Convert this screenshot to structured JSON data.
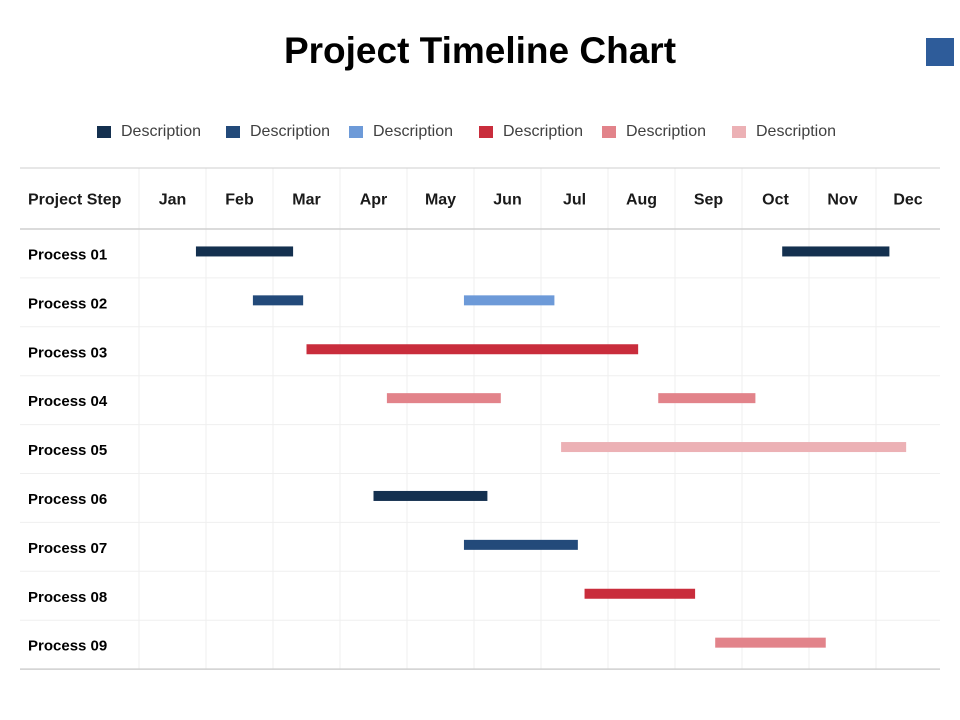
{
  "title": "Project Timeline Chart",
  "accent_color": "#2e5c9a",
  "legend": [
    {
      "label": "Description",
      "color": "#14304f"
    },
    {
      "label": "Description",
      "color": "#234a7a"
    },
    {
      "label": "Description",
      "color": "#6d9ad8"
    },
    {
      "label": "Description",
      "color": "#c92d3c"
    },
    {
      "label": "Description",
      "color": "#e2838a"
    },
    {
      "label": "Description",
      "color": "#ecb1b5"
    }
  ],
  "chart_data": {
    "type": "table",
    "subtype": "gantt",
    "title": "Project Timeline Chart",
    "header_label": "Project Step",
    "months": [
      "Jan",
      "Feb",
      "Mar",
      "Apr",
      "May",
      "Jun",
      "Jul",
      "Aug",
      "Sep",
      "Oct",
      "Nov",
      "Dec"
    ],
    "grid": true,
    "legend_position": "top",
    "rows": [
      {
        "label": "Process 01",
        "bars": [
          {
            "start": 1.85,
            "end": 3.3,
            "color": "#14304f"
          },
          {
            "start": 10.6,
            "end": 12.2,
            "color": "#14304f"
          }
        ]
      },
      {
        "label": "Process 02",
        "bars": [
          {
            "start": 2.7,
            "end": 3.45,
            "color": "#234a7a"
          },
          {
            "start": 5.85,
            "end": 7.2,
            "color": "#6d9ad8"
          }
        ]
      },
      {
        "label": "Process 03",
        "bars": [
          {
            "start": 3.5,
            "end": 8.45,
            "color": "#c92d3c"
          }
        ]
      },
      {
        "label": "Process 04",
        "bars": [
          {
            "start": 4.7,
            "end": 6.4,
            "color": "#e2838a"
          },
          {
            "start": 8.75,
            "end": 10.2,
            "color": "#e2838a"
          }
        ]
      },
      {
        "label": "Process 05",
        "bars": [
          {
            "start": 7.3,
            "end": 12.45,
            "color": "#ecb1b5"
          }
        ]
      },
      {
        "label": "Process 06",
        "bars": [
          {
            "start": 4.5,
            "end": 6.2,
            "color": "#14304f"
          }
        ]
      },
      {
        "label": "Process 07",
        "bars": [
          {
            "start": 5.85,
            "end": 7.55,
            "color": "#234a7a"
          }
        ]
      },
      {
        "label": "Process 08",
        "bars": [
          {
            "start": 7.65,
            "end": 9.3,
            "color": "#c92d3c"
          }
        ]
      },
      {
        "label": "Process 09",
        "bars": [
          {
            "start": 9.6,
            "end": 11.25,
            "color": "#e2838a"
          }
        ]
      }
    ]
  }
}
